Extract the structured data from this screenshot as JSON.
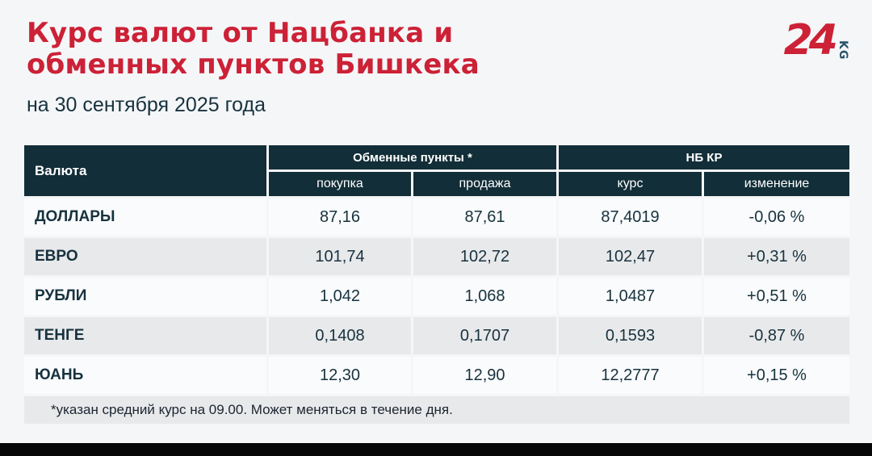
{
  "header": {
    "title_line1": "Курс валют от Нацбанка и",
    "title_line2": "обменных пунктов Бишкека",
    "subtitle": "на 30 сентября 2025 года",
    "logo_number": "24",
    "logo_kg": "KG"
  },
  "table": {
    "headers": {
      "currency": "Валюта",
      "group_exchange": "Обменные пункты *",
      "group_nbkr": "НБ КР",
      "buy": "покупка",
      "sell": "продажа",
      "rate": "курс",
      "change": "изменение"
    },
    "rows": [
      {
        "currency": "ДОЛЛАРЫ",
        "buy": "87,16",
        "sell": "87,61",
        "rate": "87,4019",
        "change": "-0,06 %"
      },
      {
        "currency": "ЕВРО",
        "buy": "101,74",
        "sell": "102,72",
        "rate": "102,47",
        "change": "+0,31 %"
      },
      {
        "currency": "РУБЛИ",
        "buy": "1,042",
        "sell": "1,068",
        "rate": "1,0487",
        "change": "+0,51 %"
      },
      {
        "currency": "ТЕНГЕ",
        "buy": "0,1408",
        "sell": "0,1707",
        "rate": "0,1593",
        "change": "-0,87 %"
      },
      {
        "currency": "ЮАНЬ",
        "buy": "12,30",
        "sell": "12,90",
        "rate": "12,2777",
        "change": "+0,15 %"
      }
    ],
    "footnote": "*указан средний курс на 09.00. Может меняться в течение дня."
  },
  "colors": {
    "accent_red": "#cc2136",
    "header_dark": "#122e38",
    "text_dark": "#17323e",
    "row_light": "#fafbfc",
    "row_gray": "#e8e9eb",
    "page_bg": "#f5f6f8",
    "logo_kg_blue": "#28536b"
  },
  "chart_data": {
    "type": "table",
    "title": "Курс валют от Нацбанка и обменных пунктов Бишкека",
    "subtitle": "на 30 сентября 2025 года",
    "columns": [
      "Валюта",
      "Обменные пункты * — покупка",
      "Обменные пункты * — продажа",
      "НБ КР — курс",
      "НБ КР — изменение (%)"
    ],
    "rows": [
      [
        "ДОЛЛАРЫ",
        87.16,
        87.61,
        87.4019,
        -0.06
      ],
      [
        "ЕВРО",
        101.74,
        102.72,
        102.47,
        0.31
      ],
      [
        "РУБЛИ",
        1.042,
        1.068,
        1.0487,
        0.51
      ],
      [
        "ТЕНГЕ",
        0.1408,
        0.1707,
        0.1593,
        -0.87
      ],
      [
        "ЮАНЬ",
        12.3,
        12.9,
        12.2777,
        0.15
      ]
    ],
    "footnote": "*указан средний курс на 09.00. Может меняться в течение дня."
  }
}
